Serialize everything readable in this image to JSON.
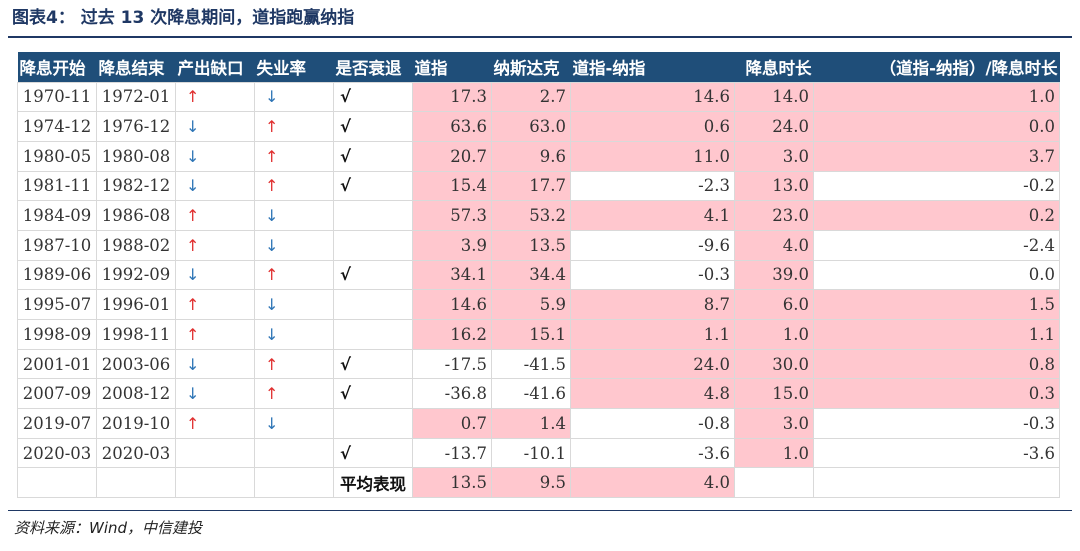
{
  "title": "图表4：  过去 13 次降息期间，道指跑赢纳指",
  "source": "资料来源：Wind，中信建投",
  "headers": [
    "降息开始",
    "降息结束",
    "产出缺口",
    "失业率",
    "是否衰退",
    "道指",
    "纳斯达克",
    "道指-纳指",
    "降息时长",
    "（道指-纳指）/降息时长"
  ],
  "rows": [
    {
      "start": "1970-11",
      "end": "1972-01",
      "gap": "up",
      "unemp": "down",
      "recession": "√",
      "dow": "17.3",
      "nasdaq": "2.7",
      "diff": "14.6",
      "duration": "14.0",
      "ratio": "1.0",
      "pink": [
        true,
        true,
        true,
        true,
        true
      ]
    },
    {
      "start": "1974-12",
      "end": "1976-12",
      "gap": "down",
      "unemp": "up",
      "recession": "√",
      "dow": "63.6",
      "nasdaq": "63.0",
      "diff": "0.6",
      "duration": "24.0",
      "ratio": "0.0",
      "pink": [
        true,
        true,
        true,
        true,
        true
      ]
    },
    {
      "start": "1980-05",
      "end": "1980-08",
      "gap": "down",
      "unemp": "up",
      "recession": "√",
      "dow": "20.7",
      "nasdaq": "9.6",
      "diff": "11.0",
      "duration": "3.0",
      "ratio": "3.7",
      "pink": [
        true,
        true,
        true,
        true,
        true
      ]
    },
    {
      "start": "1981-11",
      "end": "1982-12",
      "gap": "down",
      "unemp": "up",
      "recession": "√",
      "dow": "15.4",
      "nasdaq": "17.7",
      "diff": "-2.3",
      "duration": "13.0",
      "ratio": "-0.2",
      "pink": [
        true,
        true,
        false,
        true,
        false
      ]
    },
    {
      "start": "1984-09",
      "end": "1986-08",
      "gap": "up",
      "unemp": "down",
      "recession": "",
      "dow": "57.3",
      "nasdaq": "53.2",
      "diff": "4.1",
      "duration": "23.0",
      "ratio": "0.2",
      "pink": [
        true,
        true,
        true,
        true,
        true
      ]
    },
    {
      "start": "1987-10",
      "end": "1988-02",
      "gap": "up",
      "unemp": "down",
      "recession": "",
      "dow": "3.9",
      "nasdaq": "13.5",
      "diff": "-9.6",
      "duration": "4.0",
      "ratio": "-2.4",
      "pink": [
        true,
        true,
        false,
        true,
        false
      ]
    },
    {
      "start": "1989-06",
      "end": "1992-09",
      "gap": "down",
      "unemp": "up",
      "recession": "√",
      "dow": "34.1",
      "nasdaq": "34.4",
      "diff": "-0.3",
      "duration": "39.0",
      "ratio": "0.0",
      "pink": [
        true,
        true,
        false,
        true,
        false
      ]
    },
    {
      "start": "1995-07",
      "end": "1996-01",
      "gap": "up",
      "unemp": "down",
      "recession": "",
      "dow": "14.6",
      "nasdaq": "5.9",
      "diff": "8.7",
      "duration": "6.0",
      "ratio": "1.5",
      "pink": [
        true,
        true,
        true,
        true,
        true
      ]
    },
    {
      "start": "1998-09",
      "end": "1998-11",
      "gap": "up",
      "unemp": "down",
      "recession": "",
      "dow": "16.2",
      "nasdaq": "15.1",
      "diff": "1.1",
      "duration": "1.0",
      "ratio": "1.1",
      "pink": [
        true,
        true,
        true,
        true,
        true
      ]
    },
    {
      "start": "2001-01",
      "end": "2003-06",
      "gap": "down",
      "unemp": "up",
      "recession": "√",
      "dow": "-17.5",
      "nasdaq": "-41.5",
      "diff": "24.0",
      "duration": "30.0",
      "ratio": "0.8",
      "pink": [
        false,
        false,
        true,
        true,
        true
      ]
    },
    {
      "start": "2007-09",
      "end": "2008-12",
      "gap": "down",
      "unemp": "up",
      "recession": "√",
      "dow": "-36.8",
      "nasdaq": "-41.6",
      "diff": "4.8",
      "duration": "15.0",
      "ratio": "0.3",
      "pink": [
        false,
        false,
        true,
        true,
        true
      ]
    },
    {
      "start": "2019-07",
      "end": "2019-10",
      "gap": "up",
      "unemp": "down",
      "recession": "",
      "dow": "0.7",
      "nasdaq": "1.4",
      "diff": "-0.8",
      "duration": "3.0",
      "ratio": "-0.3",
      "pink": [
        true,
        true,
        false,
        true,
        false
      ]
    },
    {
      "start": "2020-03",
      "end": "2020-03",
      "gap": "",
      "unemp": "",
      "recession": "√",
      "dow": "-13.7",
      "nasdaq": "-10.1",
      "diff": "-3.6",
      "duration": "1.0",
      "ratio": "-3.6",
      "pink": [
        false,
        false,
        false,
        true,
        false
      ]
    }
  ],
  "average": {
    "label": "平均表现",
    "dow": "13.5",
    "nasdaq": "9.5",
    "diff": "4.0"
  },
  "glyphs": {
    "up": "↑",
    "down": "↓"
  },
  "colors": {
    "header_bg": "#1f4e79",
    "highlight": "#ffc7ce",
    "up_arrow": "#e03030",
    "down_arrow": "#2e75b6"
  }
}
